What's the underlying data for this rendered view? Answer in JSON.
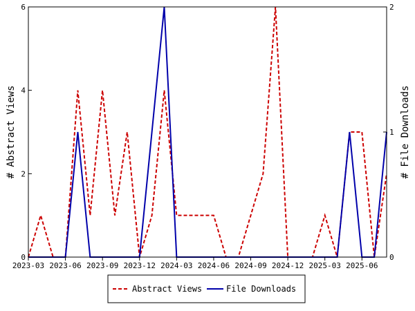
{
  "chart_data": {
    "type": "line",
    "x": [
      "2023-03",
      "2023-04",
      "2023-05",
      "2023-06",
      "2023-07",
      "2023-08",
      "2023-09",
      "2023-10",
      "2023-11",
      "2023-12",
      "2024-01",
      "2024-02",
      "2024-03",
      "2024-04",
      "2024-05",
      "2024-06",
      "2024-07",
      "2024-08",
      "2024-09",
      "2024-10",
      "2024-11",
      "2024-12",
      "2025-01",
      "2025-02",
      "2025-03",
      "2025-04",
      "2025-05",
      "2025-06",
      "2025-07",
      "2025-08"
    ],
    "x_ticks": [
      "2023-03",
      "2023-06",
      "2023-09",
      "2023-12",
      "2024-03",
      "2024-06",
      "2024-09",
      "2024-12",
      "2025-03",
      "2025-06"
    ],
    "y_left": {
      "label": "# Abstract Views",
      "range": [
        0,
        6
      ],
      "ticks": [
        "0",
        "2",
        "4",
        "6"
      ]
    },
    "y_right": {
      "label": "# File Downloads",
      "range": [
        0,
        2
      ],
      "ticks": [
        "0",
        "1",
        "2"
      ]
    },
    "series": [
      {
        "name": "Abstract Views",
        "axis": "left",
        "color": "#cc0000",
        "dashed": true,
        "points": [
          [
            "2023-03",
            0
          ],
          [
            "2023-04",
            1
          ],
          [
            "2023-05",
            0
          ],
          [
            "2023-06",
            0
          ],
          [
            "2023-07",
            4
          ],
          [
            "2023-08",
            1
          ],
          [
            "2023-09",
            4
          ],
          [
            "2023-10",
            1
          ],
          [
            "2023-11",
            3
          ],
          [
            "2023-12",
            0
          ],
          [
            "2024-01",
            1
          ],
          [
            "2024-02",
            4
          ],
          [
            "2024-03",
            1
          ],
          [
            "2024-04",
            1
          ],
          [
            "2024-05",
            1
          ],
          [
            "2024-06",
            1
          ],
          [
            "2024-07",
            0
          ],
          [
            "2024-08",
            0
          ],
          [
            "2024-09",
            1
          ],
          [
            "2024-10",
            2
          ],
          [
            "2024-11",
            6
          ],
          [
            "2024-12",
            0
          ],
          [
            "2025-01",
            0
          ],
          [
            "2025-02",
            0
          ],
          [
            "2025-03",
            1
          ],
          [
            "2025-04",
            0
          ],
          [
            "2025-05",
            3
          ],
          [
            "2025-06",
            3
          ],
          [
            "2025-07",
            0
          ],
          [
            "2025-08",
            2
          ]
        ]
      },
      {
        "name": "File Downloads",
        "axis": "right",
        "color": "#0000aa",
        "dashed": false,
        "points": [
          [
            "2023-03",
            0
          ],
          [
            "2023-04",
            0
          ],
          [
            "2023-05",
            0
          ],
          [
            "2023-06",
            0
          ],
          [
            "2023-07",
            1
          ],
          [
            "2023-08",
            0
          ],
          [
            "2023-09",
            0
          ],
          [
            "2023-10",
            0
          ],
          [
            "2023-11",
            0
          ],
          [
            "2023-12",
            0
          ],
          [
            "2024-01",
            1
          ],
          [
            "2024-02",
            2
          ],
          [
            "2024-03",
            0
          ],
          [
            "2024-04",
            0
          ],
          [
            "2024-05",
            0
          ],
          [
            "2024-06",
            0
          ],
          [
            "2024-07",
            0
          ],
          [
            "2024-08",
            0
          ],
          [
            "2024-09",
            0
          ],
          [
            "2024-10",
            0
          ],
          [
            "2024-11",
            0
          ],
          [
            "2024-12",
            0
          ],
          [
            "2025-01",
            0
          ],
          [
            "2025-02",
            0
          ],
          [
            "2025-03",
            0
          ],
          [
            "2025-04",
            0
          ],
          [
            "2025-05",
            1
          ],
          [
            "2025-06",
            0
          ],
          [
            "2025-07",
            0
          ],
          [
            "2025-08",
            1
          ]
        ]
      }
    ],
    "grid": false,
    "legend_position": "bottom"
  }
}
